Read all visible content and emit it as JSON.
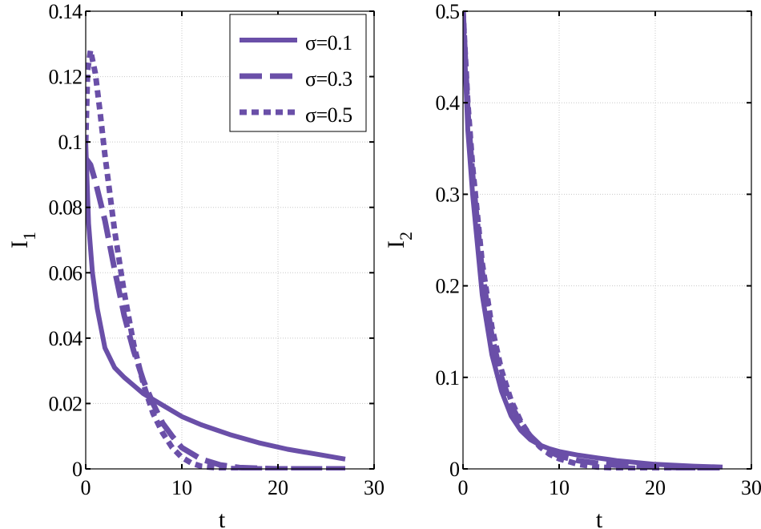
{
  "figure": {
    "line_color": "#6a4fa8"
  },
  "chart_data": [
    {
      "type": "line",
      "title": "",
      "xlabel": "t",
      "ylabel": "I",
      "ylabel_subscript": "1",
      "xlim": [
        0,
        30
      ],
      "ylim": [
        0,
        0.14
      ],
      "xticks": [
        0,
        10,
        20,
        30
      ],
      "xtick_labels": [
        "0",
        "10",
        "20",
        "30"
      ],
      "yticks": [
        0,
        0.02,
        0.04,
        0.06,
        0.08,
        0.1,
        0.12,
        0.14
      ],
      "ytick_labels": [
        "0",
        "0.02",
        "0.04",
        "0.06",
        "0.08",
        "0.1",
        "0.12",
        "0.14"
      ],
      "grid": true,
      "legend": {
        "position": "top-right"
      },
      "series": [
        {
          "name": "σ=0.1",
          "style": "solid",
          "x": [
            0,
            0.3,
            0.7,
            1.2,
            2,
            3,
            4,
            5,
            6,
            8,
            10,
            12,
            15,
            18,
            21,
            24,
            27
          ],
          "y": [
            0.1,
            0.075,
            0.06,
            0.049,
            0.037,
            0.031,
            0.028,
            0.0255,
            0.023,
            0.0195,
            0.016,
            0.0135,
            0.0105,
            0.008,
            0.006,
            0.0045,
            0.003
          ]
        },
        {
          "name": "σ=0.3",
          "style": "dashed",
          "x": [
            0,
            0.5,
            1,
            2,
            3,
            4,
            5,
            6,
            7,
            8,
            9,
            10,
            12,
            14,
            16,
            20,
            27
          ],
          "y": [
            0.095,
            0.093,
            0.088,
            0.076,
            0.061,
            0.047,
            0.036,
            0.027,
            0.02,
            0.014,
            0.01,
            0.0065,
            0.003,
            0.0012,
            0.0004,
            0,
            0
          ]
        },
        {
          "name": "σ=0.5",
          "style": "dotted",
          "x": [
            0,
            0.2,
            0.5,
            1,
            1.5,
            2,
            3,
            4,
            5,
            6,
            7,
            8,
            9,
            10,
            11,
            12,
            14,
            16,
            20,
            27
          ],
          "y": [
            0.1,
            0.122,
            0.128,
            0.121,
            0.109,
            0.096,
            0.073,
            0.054,
            0.038,
            0.026,
            0.017,
            0.011,
            0.0065,
            0.0035,
            0.0018,
            0.0008,
            0.0002,
            0,
            0,
            0
          ]
        }
      ]
    },
    {
      "type": "line",
      "title": "",
      "xlabel": "t",
      "ylabel": "I",
      "ylabel_subscript": "2",
      "xlim": [
        0,
        30
      ],
      "ylim": [
        0,
        0.5
      ],
      "xticks": [
        0,
        10,
        20,
        30
      ],
      "xtick_labels": [
        "0",
        "10",
        "20",
        "30"
      ],
      "yticks": [
        0,
        0.1,
        0.2,
        0.3,
        0.4,
        0.5
      ],
      "ytick_labels": [
        "0",
        "0.1",
        "0.2",
        "0.3",
        "0.4",
        "0.5"
      ],
      "grid": true,
      "series": [
        {
          "name": "σ=0.1",
          "style": "solid",
          "x": [
            0,
            0.5,
            1,
            2,
            3,
            4,
            5,
            6,
            7,
            8,
            9,
            10,
            12,
            14,
            16,
            20,
            24,
            27
          ],
          "y": [
            0.5,
            0.37,
            0.3,
            0.19,
            0.125,
            0.085,
            0.058,
            0.042,
            0.032,
            0.026,
            0.022,
            0.019,
            0.015,
            0.012,
            0.009,
            0.005,
            0.003,
            0.002
          ]
        },
        {
          "name": "σ=0.3",
          "style": "dashed",
          "x": [
            0,
            0.5,
            1,
            2,
            3,
            4,
            5,
            6,
            7,
            8,
            9,
            10,
            12,
            14,
            16,
            20,
            24,
            27
          ],
          "y": [
            0.5,
            0.39,
            0.32,
            0.215,
            0.145,
            0.1,
            0.07,
            0.05,
            0.036,
            0.026,
            0.019,
            0.014,
            0.009,
            0.006,
            0.004,
            0.002,
            0.001,
            0.001
          ]
        },
        {
          "name": "σ=0.5",
          "style": "dotted",
          "x": [
            0,
            0.5,
            1,
            2,
            3,
            4,
            5,
            6,
            7,
            8,
            9,
            10,
            12,
            14,
            16,
            20,
            24,
            27
          ],
          "y": [
            0.5,
            0.4,
            0.33,
            0.225,
            0.155,
            0.108,
            0.075,
            0.052,
            0.036,
            0.024,
            0.016,
            0.011,
            0.005,
            0.002,
            0.001,
            0,
            0,
            0
          ]
        }
      ]
    }
  ]
}
